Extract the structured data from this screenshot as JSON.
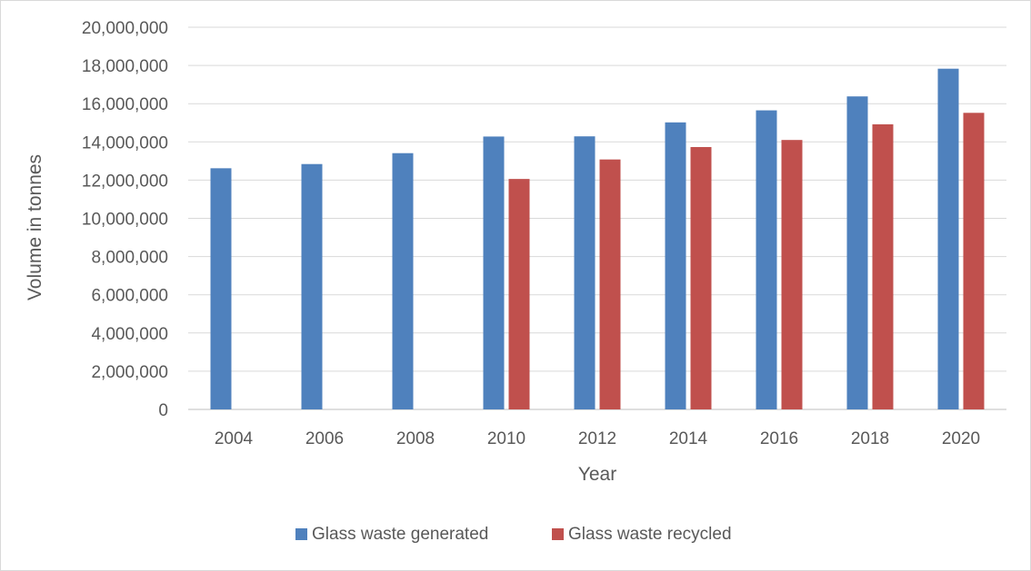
{
  "chart_data": {
    "type": "bar",
    "title": "",
    "xlabel": "Year",
    "ylabel": "Volume in tonnes",
    "categories": [
      "2004",
      "2006",
      "2008",
      "2010",
      "2012",
      "2014",
      "2016",
      "2018",
      "2020"
    ],
    "series": [
      {
        "name": "Glass waste generated",
        "color": "#4f81bd",
        "values": [
          12620000,
          12840000,
          13410000,
          14280000,
          14290000,
          15020000,
          15650000,
          16380000,
          17830000
        ]
      },
      {
        "name": "Glass waste recycled",
        "color": "#c0504d",
        "values": [
          null,
          null,
          null,
          12060000,
          13080000,
          13730000,
          14100000,
          14920000,
          15520000
        ]
      }
    ],
    "ylim": [
      0,
      20000000
    ],
    "yticks": [
      0,
      2000000,
      4000000,
      6000000,
      8000000,
      10000000,
      12000000,
      14000000,
      16000000,
      18000000,
      20000000
    ],
    "ytick_labels": [
      "0",
      "2,000,000",
      "4,000,000",
      "6,000,000",
      "8,000,000",
      "10,000,000",
      "12,000,000",
      "14,000,000",
      "16,000,000",
      "18,000,000",
      "20,000,000"
    ],
    "grid": true,
    "legend_position": "bottom"
  }
}
